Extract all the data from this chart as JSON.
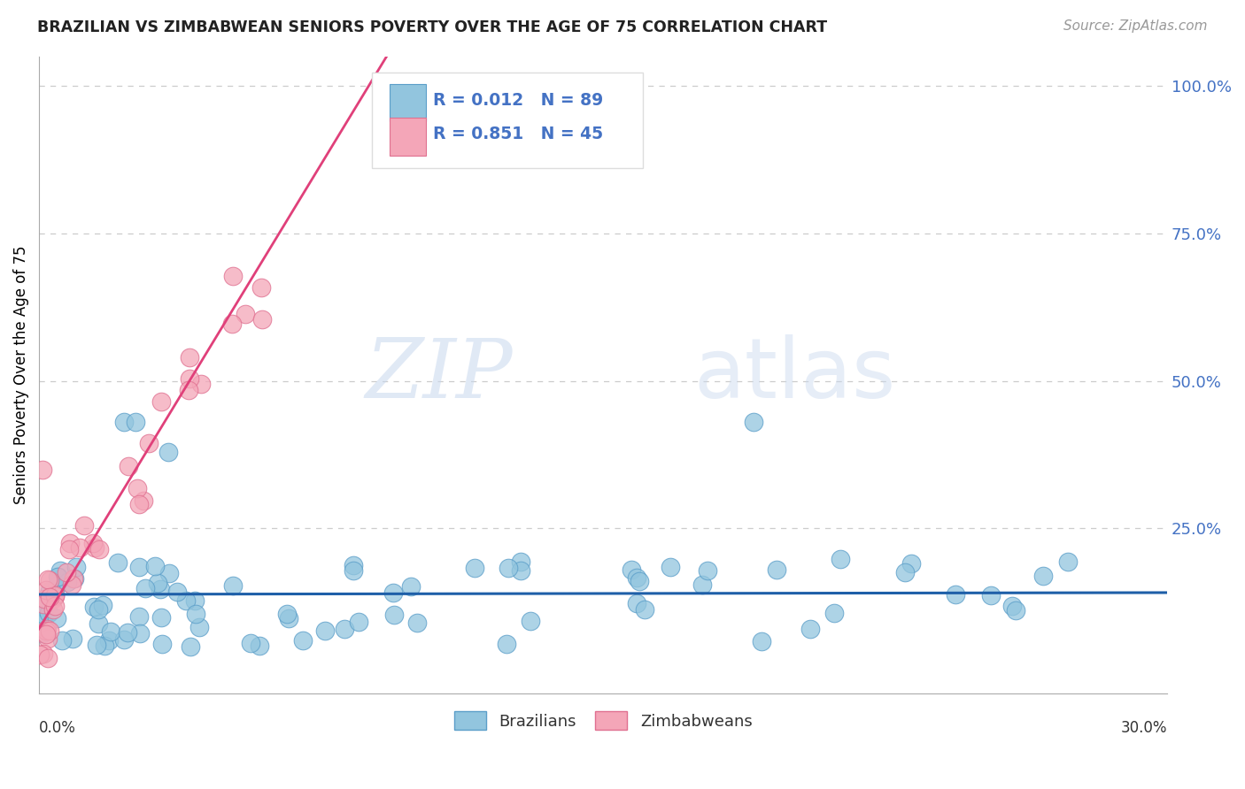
{
  "title": "BRAZILIAN VS ZIMBABWEAN SENIORS POVERTY OVER THE AGE OF 75 CORRELATION CHART",
  "source": "Source: ZipAtlas.com",
  "ylabel": "Seniors Poverty Over the Age of 75",
  "xlim": [
    0.0,
    0.3
  ],
  "ylim": [
    -0.03,
    1.05
  ],
  "watermark_zip": "ZIP",
  "watermark_atlas": "atlas",
  "legend_r1": "R = 0.012",
  "legend_n1": "N = 89",
  "legend_r2": "R = 0.851",
  "legend_n2": "N = 45",
  "brazil_color": "#92c5de",
  "brazil_edge": "#5b9ec9",
  "zimb_color": "#f4a6b8",
  "zimb_edge": "#e07090",
  "line_brazil_color": "#1e5fa8",
  "line_zimb_color": "#e0407a",
  "tick_color": "#4472c4",
  "grid_color": "#cccccc",
  "title_color": "#222222",
  "source_color": "#999999"
}
